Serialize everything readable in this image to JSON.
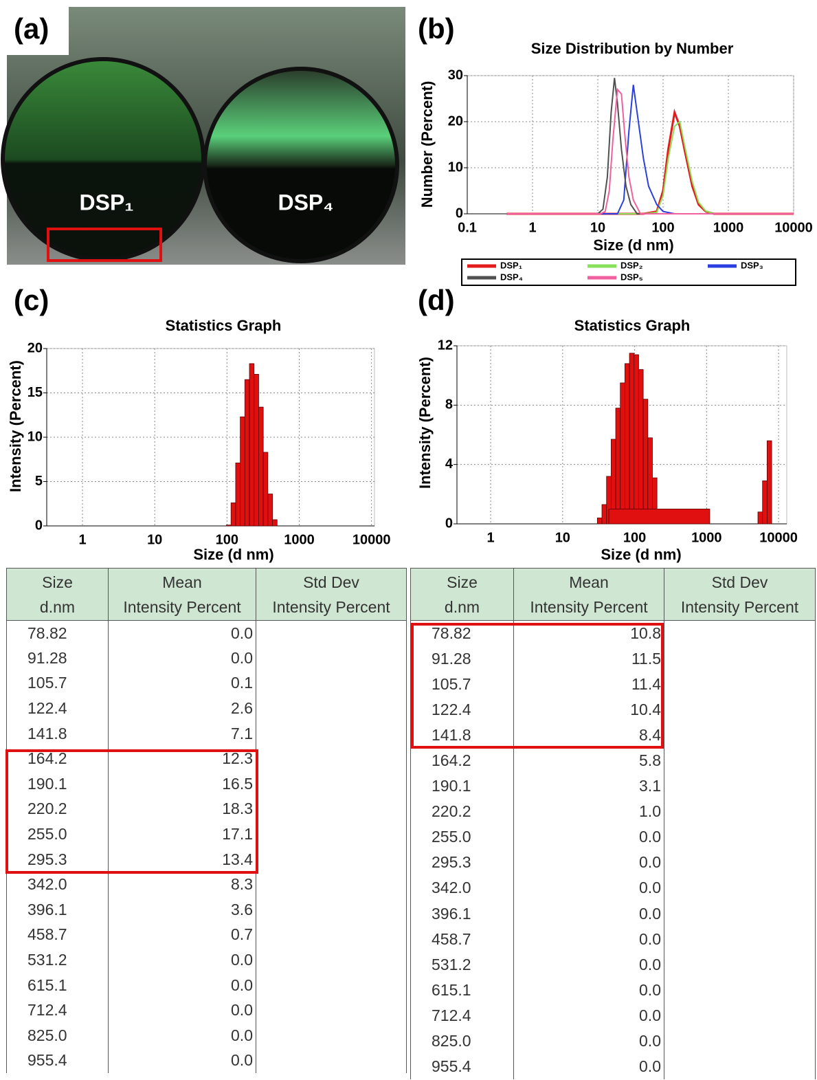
{
  "panel_labels": [
    "(a)",
    "(b)",
    "(c)",
    "(d)"
  ],
  "photo": {
    "labels": [
      "DSP₁",
      "DSP₄"
    ]
  },
  "chart_data": [
    {
      "type": "line",
      "title": "Size Distribution by Number",
      "x_label": "Size (d nm)",
      "y_label": "Number (Percent)",
      "xscale": "log",
      "xlim": [
        0.1,
        10000
      ],
      "xticks": [
        0.1,
        1,
        10,
        100,
        1000,
        10000
      ],
      "ylim": [
        0,
        30
      ],
      "yticks": [
        0,
        10,
        20,
        30
      ],
      "grid": true,
      "series": [
        {
          "name": "DSP₁",
          "color": "#e31b1b",
          "x": [
            0.4,
            50,
            80,
            100,
            120,
            150,
            180,
            220,
            280,
            350,
            450,
            600,
            1000,
            10000
          ],
          "values": [
            0,
            0,
            0.5,
            5,
            14,
            22,
            19,
            13,
            6,
            2,
            0.5,
            0,
            0,
            0
          ]
        },
        {
          "name": "DSP₂",
          "color": "#86e05a",
          "x": [
            0.4,
            50,
            80,
            100,
            120,
            150,
            180,
            220,
            280,
            350,
            450,
            600,
            1000,
            10000
          ],
          "values": [
            0,
            0,
            0.3,
            4,
            12,
            19,
            20,
            14,
            7,
            2.5,
            0.6,
            0,
            0,
            0
          ]
        },
        {
          "name": "DSP₃",
          "color": "#2b3fe0",
          "x": [
            0.4,
            20,
            25,
            30,
            35,
            40,
            50,
            60,
            80,
            100,
            150,
            10000
          ],
          "values": [
            0,
            0,
            3,
            18,
            28,
            22,
            12,
            6,
            2,
            0.5,
            0,
            0
          ]
        },
        {
          "name": "DSP₄",
          "color": "#505050",
          "x": [
            0.4,
            10,
            12,
            14,
            16,
            18,
            20,
            23,
            27,
            32,
            40,
            10000
          ],
          "values": [
            0,
            0,
            1,
            8,
            22,
            29.5,
            24,
            14,
            6,
            2,
            0,
            0
          ]
        },
        {
          "name": "DSP₅",
          "color": "#f0609e",
          "x": [
            0.4,
            11,
            13,
            15,
            17,
            20,
            23,
            26,
            30,
            35,
            45,
            10000
          ],
          "values": [
            0,
            0,
            0.5,
            5,
            16,
            27,
            26,
            17,
            8,
            3,
            0,
            0
          ]
        }
      ]
    },
    {
      "type": "bar",
      "title": "Statistics Graph",
      "x_label": "Size (d nm)",
      "y_label": "Intensity (Percent)",
      "color": "#e01010",
      "xscale": "log",
      "xlim": [
        0.32,
        11000
      ],
      "xticks": [
        1,
        10,
        100,
        1000,
        10000
      ],
      "ylim": [
        0,
        20
      ],
      "yticks": [
        0,
        5,
        10,
        15,
        20
      ],
      "grid": true,
      "x": [
        105.7,
        122.4,
        141.8,
        164.2,
        190.1,
        220.2,
        255.0,
        295.3,
        342.0,
        396.1,
        458.7
      ],
      "values": [
        0.1,
        2.6,
        7.1,
        12.3,
        16.5,
        18.3,
        17.1,
        13.4,
        8.3,
        3.6,
        0.7
      ]
    },
    {
      "type": "bar",
      "title": "Statistics Graph",
      "x_label": "Size (d nm)",
      "y_label": "Intensity (Percent)",
      "color": "#e01010",
      "xscale": "log",
      "xlim": [
        0.34,
        13000
      ],
      "xticks": [
        1,
        10,
        100,
        1000,
        10000
      ],
      "ylim": [
        0,
        12
      ],
      "yticks": [
        0,
        4,
        8,
        12
      ],
      "grid": true,
      "x": [
        32.67,
        37.84,
        43.82,
        50.75,
        58.77,
        68.06,
        78.82,
        91.28,
        105.7,
        122.4,
        141.8,
        164.2,
        190.1,
        220.2,
        5560,
        6439,
        7456
      ],
      "values": [
        0.4,
        1.3,
        3.2,
        5.7,
        7.8,
        9.5,
        10.8,
        11.5,
        11.4,
        10.4,
        8.4,
        5.8,
        3.1,
        1.0,
        0.8,
        2.9,
        5.6
      ]
    }
  ],
  "tables": [
    {
      "header": [
        [
          "Size",
          "d.nm"
        ],
        [
          "Mean",
          "Intensity Percent"
        ],
        [
          "Std Dev",
          "Intensity Percent"
        ]
      ],
      "rows": [
        [
          "78.82",
          "0.0"
        ],
        [
          "91.28",
          "0.0"
        ],
        [
          "105.7",
          "0.1"
        ],
        [
          "122.4",
          "2.6"
        ],
        [
          "141.8",
          "7.1"
        ],
        [
          "164.2",
          "12.3"
        ],
        [
          "190.1",
          "16.5"
        ],
        [
          "220.2",
          "18.3"
        ],
        [
          "255.0",
          "17.1"
        ],
        [
          "295.3",
          "13.4"
        ],
        [
          "342.0",
          "8.3"
        ],
        [
          "396.1",
          "3.6"
        ],
        [
          "458.7",
          "0.7"
        ],
        [
          "531.2",
          "0.0"
        ],
        [
          "615.1",
          "0.0"
        ],
        [
          "712.4",
          "0.0"
        ],
        [
          "825.0",
          "0.0"
        ],
        [
          "955.4",
          "0.0"
        ]
      ]
    },
    {
      "header": [
        [
          "Size",
          "d.nm"
        ],
        [
          "Mean",
          "Intensity Percent"
        ],
        [
          "Std Dev",
          "Intensity Percent"
        ]
      ],
      "rows": [
        [
          "78.82",
          "10.8"
        ],
        [
          "91.28",
          "11.5"
        ],
        [
          "105.7",
          "11.4"
        ],
        [
          "122.4",
          "10.4"
        ],
        [
          "141.8",
          "8.4"
        ],
        [
          "164.2",
          "5.8"
        ],
        [
          "190.1",
          "3.1"
        ],
        [
          "220.2",
          "1.0"
        ],
        [
          "255.0",
          "0.0"
        ],
        [
          "295.3",
          "0.0"
        ],
        [
          "342.0",
          "0.0"
        ],
        [
          "396.1",
          "0.0"
        ],
        [
          "458.7",
          "0.0"
        ],
        [
          "531.2",
          "0.0"
        ],
        [
          "615.1",
          "0.0"
        ],
        [
          "712.4",
          "0.0"
        ],
        [
          "825.0",
          "0.0"
        ],
        [
          "955.4",
          "0.0"
        ]
      ]
    }
  ]
}
